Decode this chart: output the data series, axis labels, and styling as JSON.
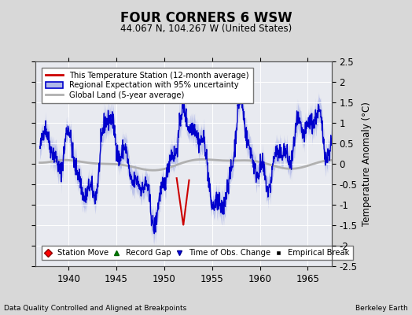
{
  "title": "FOUR CORNERS 6 WSW",
  "subtitle": "44.067 N, 104.267 W (United States)",
  "ylabel": "Temperature Anomaly (°C)",
  "xlim": [
    1936.5,
    1967.5
  ],
  "ylim": [
    -2.5,
    2.5
  ],
  "xticks": [
    1940,
    1945,
    1950,
    1955,
    1960,
    1965
  ],
  "yticks": [
    -2.5,
    -2,
    -1.5,
    -1,
    -0.5,
    0,
    0.5,
    1,
    1.5,
    2,
    2.5
  ],
  "bg_color": "#d8d8d8",
  "plot_bg_color": "#e8eaf0",
  "regional_color": "#0000cc",
  "regional_fill_color": "#b0b8e8",
  "station_color": "#cc0000",
  "global_color": "#b0b0b0",
  "footer_left": "Data Quality Controlled and Aligned at Breakpoints",
  "footer_right": "Berkeley Earth",
  "legend1_labels": [
    "This Temperature Station (12-month average)",
    "Regional Expectation with 95% uncertainty",
    "Global Land (5-year average)"
  ],
  "legend2_labels": [
    "Station Move",
    "Record Gap",
    "Time of Obs. Change",
    "Empirical Break"
  ]
}
